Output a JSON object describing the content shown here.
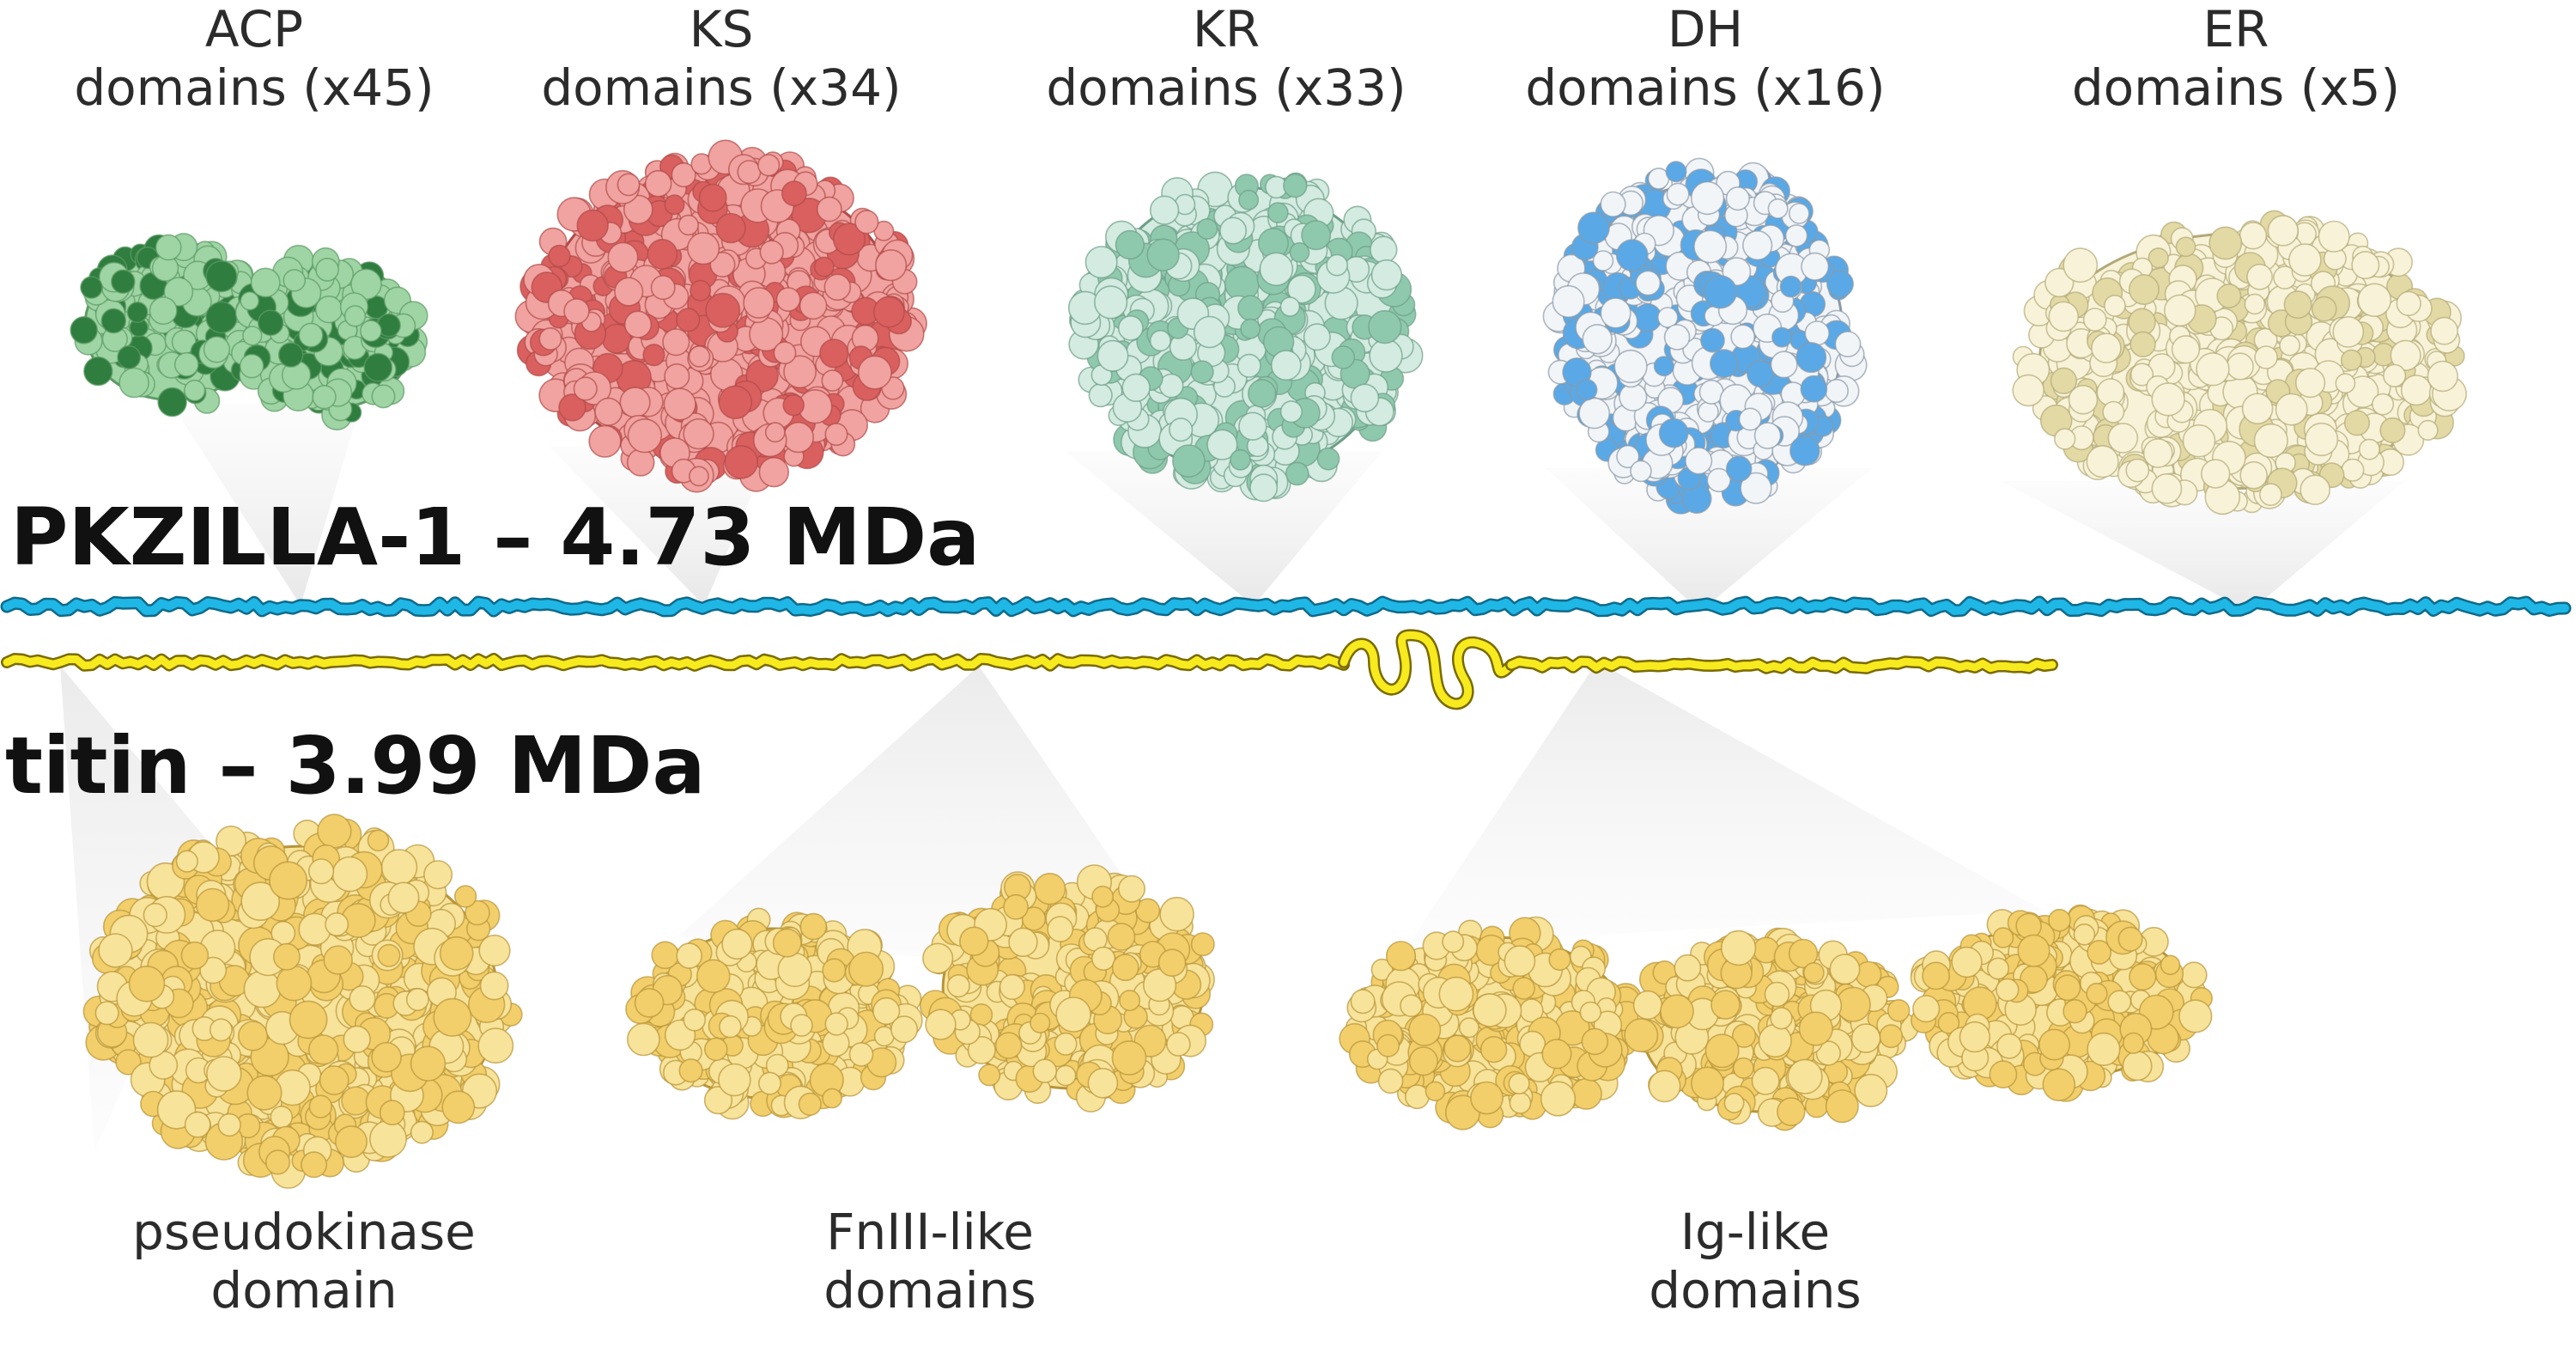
{
  "top_domains": [
    {
      "name": "ACP",
      "count": "domains (x45)",
      "colors": {
        "light": "#9fd4a4",
        "dark": "#2f7d3f",
        "edge": "#5c9b64"
      }
    },
    {
      "name": "KS",
      "count": "domains (x34)",
      "colors": {
        "light": "#f0a3a0",
        "dark": "#d9605e",
        "edge": "#b04a48"
      }
    },
    {
      "name": "KR",
      "count": "domains (x33)",
      "colors": {
        "light": "#d3ebe0",
        "dark": "#8fc9ad",
        "edge": "#6d9e87"
      }
    },
    {
      "name": "DH",
      "count": "domains (x16)",
      "colors": {
        "light": "#f2f5f8",
        "dark": "#5aa9e6",
        "edge": "#8a98a6"
      }
    },
    {
      "name": "ER",
      "count": "domains (x5)",
      "colors": {
        "light": "#f8f3d8",
        "dark": "#e3d9a4",
        "edge": "#b3a978"
      }
    }
  ],
  "pkzilla": {
    "label": "PKZILLA-1 – 4.73 MDa",
    "color": "#1fb7e6"
  },
  "titin": {
    "label": "titin – 3.99 MDa",
    "color": "#f7ea1e"
  },
  "bottom_domains": [
    {
      "line1": "pseudokinase",
      "line2": "domain"
    },
    {
      "line1": "FnIII-like",
      "line2": "domains"
    },
    {
      "line1": "Ig-like",
      "line2": "domains"
    }
  ],
  "colors": {
    "protein_yellow": "#f2cf6b",
    "protein_yellow_dark": "#b89438",
    "beam": "#d9d9d9"
  }
}
